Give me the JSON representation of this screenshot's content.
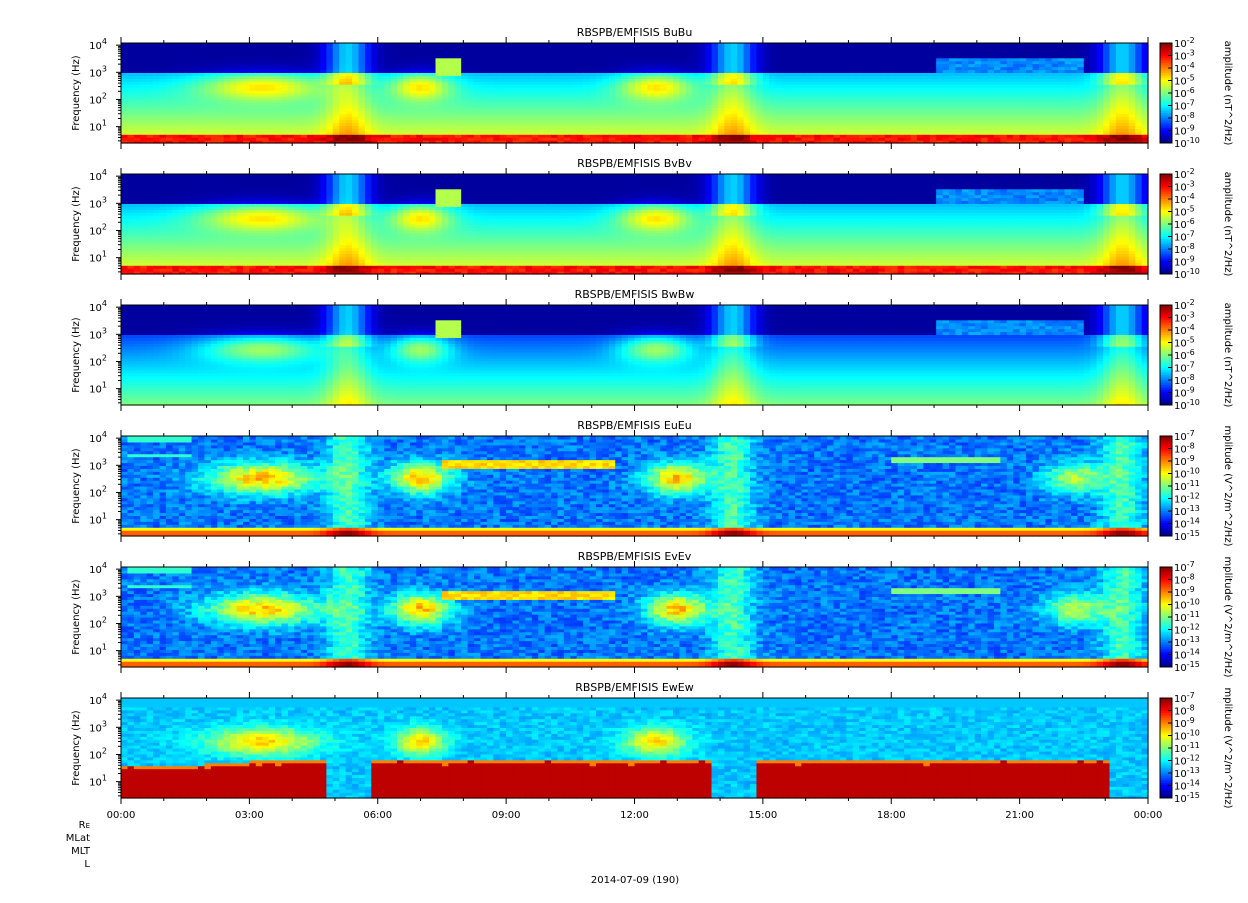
{
  "chart_data": [
    {
      "type": "heatmap",
      "title": "RBSPB/EMFISIS  BuBu",
      "ylabel": "Frequency (Hz)",
      "yscale": "log",
      "ylim": [
        2.5,
        12000
      ],
      "yticks": [
        {
          "base": "10",
          "exp": "1",
          "v": 10
        },
        {
          "base": "10",
          "exp": "2",
          "v": 100
        },
        {
          "base": "10",
          "exp": "3",
          "v": 1000
        },
        {
          "base": "10",
          "exp": "4",
          "v": 10000
        }
      ],
      "colorbar": {
        "label": "amplitude (nT^2/Hz)",
        "ticks": [
          "10-2",
          "10-3",
          "10-4",
          "10-5",
          "10-6",
          "10-7",
          "10-8",
          "10-9",
          "10-10"
        ],
        "exps": [
          "-2",
          "-3",
          "-4",
          "-5",
          "-6",
          "-7",
          "-8",
          "-9",
          "-10"
        ]
      },
      "kind": "B",
      "variant": "u"
    },
    {
      "type": "heatmap",
      "title": "RBSPB/EMFISIS  BvBv",
      "ylabel": "Frequency (Hz)",
      "yscale": "log",
      "ylim": [
        2.5,
        12000
      ],
      "yticks": [
        {
          "base": "10",
          "exp": "1",
          "v": 10
        },
        {
          "base": "10",
          "exp": "2",
          "v": 100
        },
        {
          "base": "10",
          "exp": "3",
          "v": 1000
        },
        {
          "base": "10",
          "exp": "4",
          "v": 10000
        }
      ],
      "colorbar": {
        "label": "amplitude (nT^2/Hz)",
        "exps": [
          "-2",
          "-3",
          "-4",
          "-5",
          "-6",
          "-7",
          "-8",
          "-9",
          "-10"
        ]
      },
      "kind": "B",
      "variant": "v"
    },
    {
      "type": "heatmap",
      "title": "RBSPB/EMFISIS  BwBw",
      "ylabel": "Frequency (Hz)",
      "yscale": "log",
      "ylim": [
        2.5,
        12000
      ],
      "yticks": [
        {
          "base": "10",
          "exp": "1",
          "v": 10
        },
        {
          "base": "10",
          "exp": "2",
          "v": 100
        },
        {
          "base": "10",
          "exp": "3",
          "v": 1000
        },
        {
          "base": "10",
          "exp": "4",
          "v": 10000
        }
      ],
      "colorbar": {
        "label": "amplitude (nT^2/Hz)",
        "exps": [
          "-2",
          "-3",
          "-4",
          "-5",
          "-6",
          "-7",
          "-8",
          "-9",
          "-10"
        ]
      },
      "kind": "B",
      "variant": "w"
    },
    {
      "type": "heatmap",
      "title": "RBSPB/EMFISIS  EuEu",
      "ylabel": "Frequency (Hz)",
      "yscale": "log",
      "ylim": [
        2.5,
        12000
      ],
      "yticks": [
        {
          "base": "10",
          "exp": "1",
          "v": 10
        },
        {
          "base": "10",
          "exp": "2",
          "v": 100
        },
        {
          "base": "10",
          "exp": "3",
          "v": 1000
        },
        {
          "base": "10",
          "exp": "4",
          "v": 10000
        }
      ],
      "colorbar": {
        "label": "mplitude (V^2/m^2/Hz)",
        "exps": [
          "-7",
          "-8",
          "-9",
          "-10",
          "-11",
          "-12",
          "-13",
          "-14",
          "-15"
        ]
      },
      "kind": "E",
      "variant": "u"
    },
    {
      "type": "heatmap",
      "title": "RBSPB/EMFISIS  EvEv",
      "ylabel": "Frequency (Hz)",
      "yscale": "log",
      "ylim": [
        2.5,
        12000
      ],
      "yticks": [
        {
          "base": "10",
          "exp": "1",
          "v": 10
        },
        {
          "base": "10",
          "exp": "2",
          "v": 100
        },
        {
          "base": "10",
          "exp": "3",
          "v": 1000
        },
        {
          "base": "10",
          "exp": "4",
          "v": 10000
        }
      ],
      "colorbar": {
        "label": "mplitude (V^2/m^2/Hz)",
        "exps": [
          "-7",
          "-8",
          "-9",
          "-10",
          "-11",
          "-12",
          "-13",
          "-14",
          "-15"
        ]
      },
      "kind": "E",
      "variant": "v"
    },
    {
      "type": "heatmap",
      "title": "RBSPB/EMFISIS  EwEw",
      "ylabel": "Frequency (Hz)",
      "yscale": "log",
      "ylim": [
        2.5,
        12000
      ],
      "yticks": [
        {
          "base": "10",
          "exp": "1",
          "v": 10
        },
        {
          "base": "10",
          "exp": "2",
          "v": 100
        },
        {
          "base": "10",
          "exp": "3",
          "v": 1000
        },
        {
          "base": "10",
          "exp": "4",
          "v": 10000
        }
      ],
      "colorbar": {
        "label": "mplitude (V^2/m^2/Hz)",
        "exps": [
          "-7",
          "-8",
          "-9",
          "-10",
          "-11",
          "-12",
          "-13",
          "-14",
          "-15"
        ]
      },
      "kind": "W",
      "variant": "w"
    }
  ],
  "xaxis": {
    "ticks": [
      "00:00",
      "03:00",
      "06:00",
      "09:00",
      "12:00",
      "15:00",
      "18:00",
      "21:00",
      "00:00"
    ],
    "xlim_hours": [
      0,
      24
    ]
  },
  "ephemeris_labels": [
    "R",
    "MLat",
    "MLT",
    "L"
  ],
  "ephemeris_sub": "E",
  "date_label": "2014-07-09 (190)"
}
